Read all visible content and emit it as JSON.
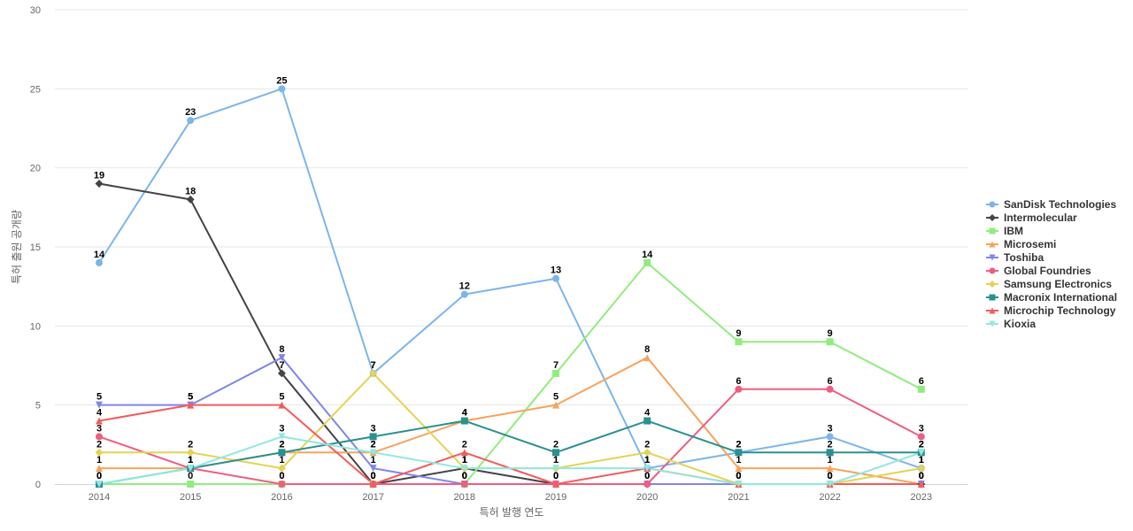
{
  "chart_data": {
    "type": "line",
    "title": "",
    "xlabel": "특허 발행 연도",
    "ylabel": "특허 출원 공개량",
    "x": [
      "2014",
      "2015",
      "2016",
      "2017",
      "2018",
      "2019",
      "2020",
      "2021",
      "2022",
      "2023"
    ],
    "yticks": [
      "0",
      "5",
      "10",
      "15",
      "20",
      "25",
      "30"
    ],
    "ylim": [
      0,
      30
    ],
    "grid": true,
    "legend_position": "right",
    "series": [
      {
        "name": "SanDisk Technologies",
        "color": "#7cb5ec",
        "marker": "circle",
        "values": [
          14,
          23,
          25,
          7,
          12,
          13,
          1,
          2,
          3,
          1
        ]
      },
      {
        "name": "Intermolecular",
        "color": "#434348",
        "marker": "diamond",
        "values": [
          19,
          18,
          7,
          0,
          1,
          0,
          0,
          0,
          0,
          0
        ]
      },
      {
        "name": "IBM",
        "color": "#90ed7d",
        "marker": "square",
        "values": [
          0,
          0,
          0,
          0,
          0,
          7,
          14,
          9,
          9,
          6
        ]
      },
      {
        "name": "Microsemi",
        "color": "#f7a35c",
        "marker": "triangle",
        "values": [
          1,
          1,
          2,
          2,
          4,
          5,
          8,
          1,
          1,
          0
        ]
      },
      {
        "name": "Toshiba",
        "color": "#8085e9",
        "marker": "triangle-down",
        "values": [
          5,
          5,
          8,
          1,
          0,
          0,
          0,
          0,
          0,
          0
        ]
      },
      {
        "name": "Global Foundries",
        "color": "#f15c80",
        "marker": "circle",
        "values": [
          3,
          1,
          0,
          0,
          0,
          0,
          0,
          6,
          6,
          3
        ]
      },
      {
        "name": "Samsung Electronics",
        "color": "#e4d354",
        "marker": "diamond",
        "values": [
          2,
          2,
          1,
          7,
          1,
          1,
          2,
          0,
          0,
          1
        ]
      },
      {
        "name": "Macronix International",
        "color": "#2b908f",
        "marker": "square",
        "values": [
          0,
          1,
          2,
          3,
          4,
          2,
          4,
          2,
          2,
          2
        ]
      },
      {
        "name": "Microchip Technology",
        "color": "#f45b5b",
        "marker": "triangle",
        "values": [
          4,
          5,
          5,
          0,
          2,
          0,
          1,
          0,
          0,
          0
        ]
      },
      {
        "name": "Kioxia",
        "color": "#91e8e1",
        "marker": "triangle-down",
        "values": [
          0,
          1,
          3,
          2,
          1,
          1,
          1,
          0,
          0,
          2
        ]
      }
    ]
  }
}
